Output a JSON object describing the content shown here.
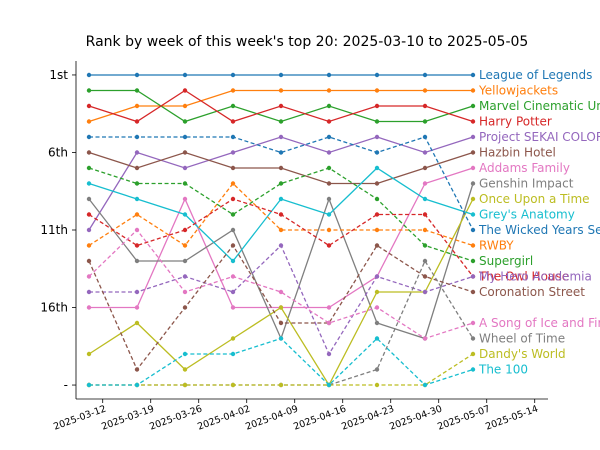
{
  "chart_data": {
    "type": "line",
    "title": "Rank by week of this week's top 20: 2025-03-10 to 2025-05-05",
    "x": [
      "2025-03-10",
      "2025-03-17",
      "2025-03-24",
      "2025-03-31",
      "2025-04-07",
      "2025-04-14",
      "2025-04-21",
      "2025-04-28",
      "2025-05-05"
    ],
    "xticks": [
      "2025-03-12",
      "2025-03-19",
      "2025-03-26",
      "2025-04-02",
      "2025-04-09",
      "2025-04-16",
      "2025-04-23",
      "2025-04-30",
      "2025-05-07",
      "2025-05-14"
    ],
    "yticks": [
      {
        "rank": 1,
        "label": "1st"
      },
      {
        "rank": 6,
        "label": "6th"
      },
      {
        "rank": 11,
        "label": "11th"
      },
      {
        "rank": 16,
        "label": "16th"
      },
      {
        "rank": 21,
        "label": "-"
      }
    ],
    "ylim": [
      21.9,
      0.1
    ],
    "grid": false,
    "legend": "right, at series end",
    "series": [
      {
        "name": "League of Legends",
        "color": "#1f77b4",
        "dashed": false,
        "values": [
          1,
          1,
          1,
          1,
          1,
          1,
          1,
          1,
          1
        ]
      },
      {
        "name": "Yellowjackets",
        "color": "#ff7f0e",
        "dashed": false,
        "values": [
          4,
          3,
          3,
          2,
          2,
          2,
          2,
          2,
          2
        ]
      },
      {
        "name": "Marvel Cinematic Universe",
        "color": "#2ca02c",
        "dashed": false,
        "values": [
          2,
          2,
          4,
          3,
          4,
          3,
          4,
          4,
          3
        ]
      },
      {
        "name": "Harry Potter",
        "color": "#d62728",
        "dashed": false,
        "values": [
          3,
          4,
          2,
          4,
          3,
          4,
          3,
          3,
          4
        ]
      },
      {
        "name": "Project SEKAI COLORFUL STAGE",
        "color": "#9467bd",
        "dashed": false,
        "values": [
          11,
          6,
          7,
          6,
          5,
          6,
          5,
          6,
          5
        ]
      },
      {
        "name": "Hazbin Hotel",
        "color": "#8c564b",
        "dashed": false,
        "values": [
          6,
          7,
          6,
          7,
          7,
          8,
          8,
          7,
          6
        ]
      },
      {
        "name": "Addams Family",
        "color": "#e377c2",
        "dashed": false,
        "values": [
          16,
          16,
          9,
          16,
          16,
          16,
          14,
          8,
          7
        ]
      },
      {
        "name": "Genshin Impact",
        "color": "#7f7f7f",
        "dashed": false,
        "values": [
          9,
          13,
          13,
          11,
          18,
          9,
          17,
          18,
          8
        ]
      },
      {
        "name": "Once Upon a Time",
        "color": "#bcbd22",
        "dashed": false,
        "values": [
          19,
          17,
          20,
          18,
          16,
          21,
          15,
          15,
          9
        ]
      },
      {
        "name": "Grey's Anatomy",
        "color": "#17becf",
        "dashed": false,
        "values": [
          8,
          9,
          10,
          13,
          9,
          10,
          7,
          9,
          10
        ]
      },
      {
        "name": "The Wicked Years Series",
        "color": "#1f77b4",
        "dashed": true,
        "values": [
          5,
          5,
          5,
          5,
          6,
          5,
          6,
          5,
          11
        ]
      },
      {
        "name": "RWBY",
        "color": "#ff7f0e",
        "dashed": true,
        "values": [
          12,
          10,
          12,
          8,
          11,
          11,
          11,
          11,
          12
        ]
      },
      {
        "name": "Supergirl",
        "color": "#2ca02c",
        "dashed": true,
        "values": [
          7,
          8,
          8,
          10,
          8,
          7,
          9,
          12,
          13
        ]
      },
      {
        "name": "The Owl House",
        "color": "#d62728",
        "dashed": true,
        "values": [
          10,
          12,
          11,
          9,
          10,
          12,
          10,
          10,
          14
        ]
      },
      {
        "name": "My Hero Academia",
        "color": "#9467bd",
        "dashed": true,
        "values": [
          15,
          15,
          14,
          15,
          12,
          19,
          14,
          15,
          14
        ]
      },
      {
        "name": "Coronation Street",
        "color": "#8c564b",
        "dashed": true,
        "values": [
          13,
          20,
          16,
          12,
          17,
          17,
          12,
          14,
          15
        ]
      },
      {
        "name": "A Song of Ice and Fire",
        "color": "#e377c2",
        "dashed": true,
        "values": [
          14,
          11,
          15,
          14,
          15,
          17,
          16,
          18,
          17
        ]
      },
      {
        "name": "Wheel of Time",
        "color": "#7f7f7f",
        "dashed": true,
        "values": [
          21,
          21,
          21,
          21,
          21,
          21,
          20,
          13,
          18
        ]
      },
      {
        "name": "Dandy's World",
        "color": "#bcbd22",
        "dashed": true,
        "values": [
          21,
          21,
          21,
          21,
          21,
          21,
          21,
          21,
          19
        ]
      },
      {
        "name": "The 100",
        "color": "#17becf",
        "dashed": true,
        "values": [
          21,
          21,
          19,
          19,
          18,
          21,
          18,
          21,
          20
        ]
      }
    ]
  }
}
